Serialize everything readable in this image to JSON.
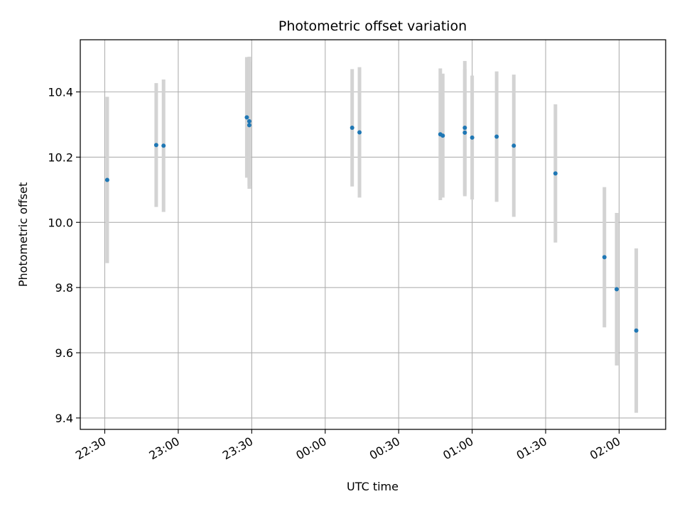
{
  "chart_data": {
    "type": "scatter",
    "title": "Photometric offset variation",
    "xlabel": "UTC time",
    "ylabel": "Photometric offset",
    "grid": true,
    "x_ticks": [
      "22:30",
      "23:00",
      "23:30",
      "00:00",
      "00:30",
      "01:00",
      "01:30",
      "02:00"
    ],
    "y_ticks": [
      "9.4",
      "9.6",
      "9.8",
      "10.0",
      "10.2",
      "10.4"
    ],
    "xlim": [
      "22:20",
      "02:19"
    ],
    "ylim": [
      9.365,
      10.56
    ],
    "colors": {
      "points": "#1f77b4",
      "errorbars": "#d3d3d3",
      "grid": "#b0b0b0"
    },
    "series": [
      {
        "points": [
          {
            "x": "22:31",
            "y": 10.13,
            "err": 0.255
          },
          {
            "x": "22:51",
            "y": 10.237,
            "err": 0.19
          },
          {
            "x": "22:54",
            "y": 10.235,
            "err": 0.203
          },
          {
            "x": "23:28",
            "y": 10.322,
            "err": 0.185
          },
          {
            "x": "23:29",
            "y": 10.31,
            "err": 0.198
          },
          {
            "x": "23:29",
            "y": 10.298,
            "err": 0.195
          },
          {
            "x": "00:11",
            "y": 10.29,
            "err": 0.18
          },
          {
            "x": "00:14",
            "y": 10.276,
            "err": 0.2
          },
          {
            "x": "00:47",
            "y": 10.27,
            "err": 0.202
          },
          {
            "x": "00:48",
            "y": 10.266,
            "err": 0.19
          },
          {
            "x": "00:57",
            "y": 10.29,
            "err": 0.205
          },
          {
            "x": "00:57",
            "y": 10.275,
            "err": 0.195
          },
          {
            "x": "01:00",
            "y": 10.26,
            "err": 0.19
          },
          {
            "x": "01:10",
            "y": 10.263,
            "err": 0.2
          },
          {
            "x": "01:17",
            "y": 10.235,
            "err": 0.218
          },
          {
            "x": "01:34",
            "y": 10.15,
            "err": 0.212
          },
          {
            "x": "01:54",
            "y": 9.893,
            "err": 0.215
          },
          {
            "x": "01:59",
            "y": 9.795,
            "err": 0.234
          },
          {
            "x": "02:07",
            "y": 9.668,
            "err": 0.252
          }
        ]
      }
    ]
  }
}
